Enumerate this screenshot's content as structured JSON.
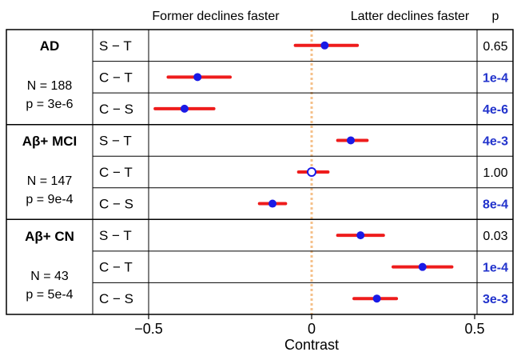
{
  "chart_data": {
    "type": "forest",
    "title": "",
    "xlabel": "Contrast",
    "xlim": [
      -0.52,
      0.62
    ],
    "x_ticks": [
      -0.5,
      0,
      0.5
    ],
    "x_tick_labels": [
      "−0.5",
      "0",
      "0.5"
    ],
    "header_left": "Former declines faster",
    "header_right": "Latter declines faster",
    "p_header": "p",
    "reference_line": 0,
    "groups": [
      {
        "name": "AD",
        "n_label": "N = 188",
        "p_label": "p = 3e-6",
        "rows": [
          {
            "label": "S − T",
            "estimate": 0.04,
            "ci": [
              -0.05,
              0.14
            ],
            "p": "0.65",
            "significant": false
          },
          {
            "label": "C − T",
            "estimate": -0.35,
            "ci": [
              -0.44,
              -0.25
            ],
            "p": "1e-4",
            "significant": true
          },
          {
            "label": "C − S",
            "estimate": -0.39,
            "ci": [
              -0.48,
              -0.3
            ],
            "p": "4e-6",
            "significant": true
          }
        ]
      },
      {
        "name": "Aβ+ MCI",
        "n_label": "N = 147",
        "p_label": "p = 9e-4",
        "rows": [
          {
            "label": "S − T",
            "estimate": 0.12,
            "ci": [
              0.08,
              0.17
            ],
            "p": "4e-3",
            "significant": true
          },
          {
            "label": "C − T",
            "estimate": 0.0,
            "ci": [
              -0.04,
              0.05
            ],
            "p": "1.00",
            "significant": false,
            "hollow": true
          },
          {
            "label": "C − S",
            "estimate": -0.12,
            "ci": [
              -0.16,
              -0.08
            ],
            "p": "8e-4",
            "significant": true
          }
        ]
      },
      {
        "name": "Aβ+ CN",
        "n_label": "N = 43",
        "p_label": "p = 5e-4",
        "rows": [
          {
            "label": "S − T",
            "estimate": 0.15,
            "ci": [
              0.08,
              0.22
            ],
            "p": "0.03",
            "significant": false
          },
          {
            "label": "C − T",
            "estimate": 0.34,
            "ci": [
              0.25,
              0.43
            ],
            "p": "1e-4",
            "significant": true
          },
          {
            "label": "C − S",
            "estimate": 0.2,
            "ci": [
              0.13,
              0.26
            ],
            "p": "3e-3",
            "significant": true
          }
        ]
      }
    ],
    "colors": {
      "ci_line": "#ee1c1c",
      "point": "#1a1ae6",
      "significant_text": "#2233cc",
      "reference_line": "#f5c08a",
      "border": "#000000"
    }
  }
}
